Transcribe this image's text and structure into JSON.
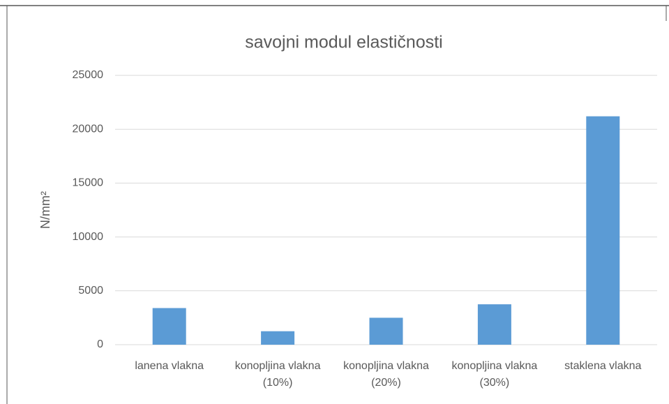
{
  "chart_data": {
    "type": "bar",
    "title": "savojni modul elastičnosti",
    "y_label": "N/mm²",
    "categories": [
      "lanena vlakna",
      "konopljina vlakna (10%)",
      "konopljina vlakna (20%)",
      "konopljina vlakna (30%)",
      "staklena vlakna"
    ],
    "values": [
      3400,
      1250,
      2500,
      3750,
      21200
    ],
    "color": "#5b9bd5",
    "ylim": [
      0,
      25000
    ],
    "yticks": [
      0,
      5000,
      10000,
      15000,
      20000,
      25000
    ],
    "grid": true
  }
}
